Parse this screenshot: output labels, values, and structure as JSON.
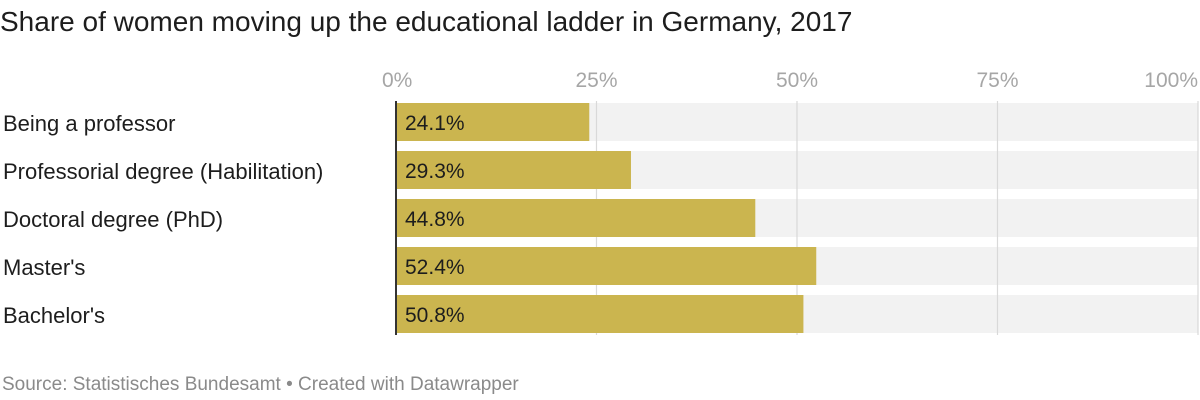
{
  "title": "Share of women moving up the educational ladder in Germany, 2017",
  "footer": {
    "source": "Source: Statistisches Bundesamt",
    "separator": "•",
    "credit": "Created with Datawrapper"
  },
  "colors": {
    "bar": "#cbb54f",
    "track": "#f2f2f2",
    "grid": "#d9d9d9",
    "axis": "#333333",
    "tick_text": "#a6a6a6",
    "label_text": "#1d1d1d"
  },
  "chart_data": {
    "type": "bar",
    "orientation": "horizontal",
    "categories": [
      "Being a professor",
      "Professorial degree (Habilitation)",
      "Doctoral degree (PhD)",
      "Master's",
      "Bachelor's"
    ],
    "values": [
      24.1,
      29.3,
      44.8,
      52.4,
      50.8
    ],
    "value_labels": [
      "24.1%",
      "29.3%",
      "44.8%",
      "52.4%",
      "50.8%"
    ],
    "xlim": [
      0,
      100
    ],
    "ticks": [
      0,
      25,
      50,
      75,
      100
    ],
    "tick_labels": [
      "0%",
      "25%",
      "50%",
      "75%",
      "100%"
    ],
    "xlabel": "",
    "ylabel": "",
    "grid": true,
    "legend": "none"
  }
}
